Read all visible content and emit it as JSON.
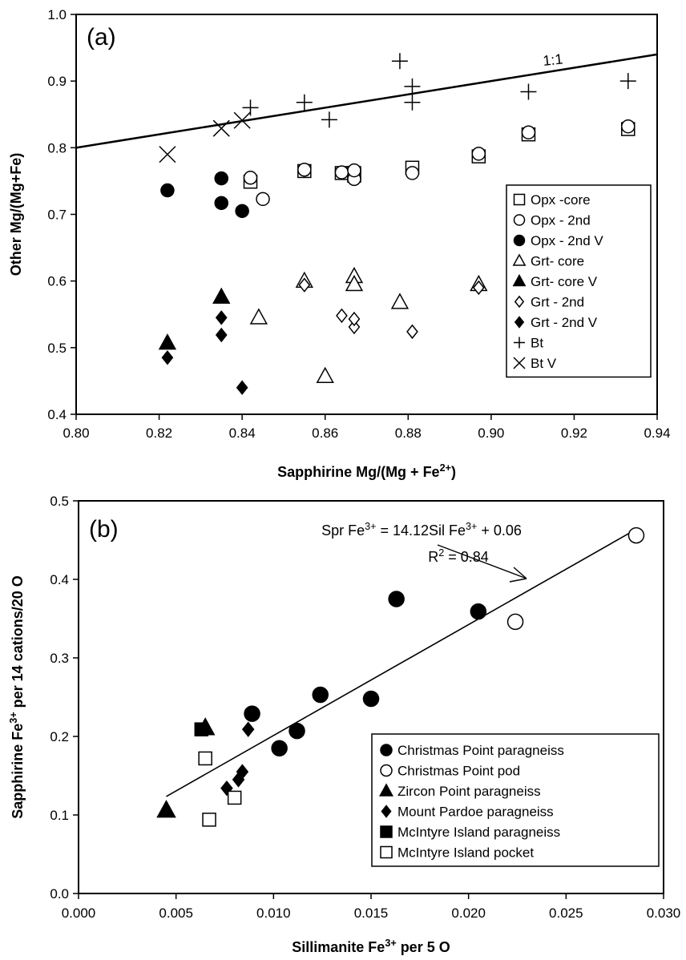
{
  "chart_data": [
    {
      "type": "scatter",
      "panel_label": "(a)",
      "xlabel": "Sapphirine Mg/(Mg + Fe",
      "xlabel_sup": "2+",
      "xlabel_end": ")",
      "ylabel": "Other Mg/(Mg+Fe)",
      "xlim": [
        0.8,
        0.94
      ],
      "ylim": [
        0.4,
        1.0
      ],
      "xticks": [
        "0.80",
        "0.82",
        "0.84",
        "0.86",
        "0.88",
        "0.90",
        "0.92",
        "0.94"
      ],
      "yticks": [
        "0.4",
        "0.5",
        "0.6",
        "0.7",
        "0.8",
        "0.9",
        "1.0"
      ],
      "reference_line": {
        "label": "1:1",
        "x": [
          0.8,
          0.94
        ],
        "y": [
          0.8,
          0.94
        ]
      },
      "legend_position": "right",
      "series": [
        {
          "name": "Opx -core",
          "marker": "open-square",
          "points": [
            [
              0.842,
              0.749
            ],
            [
              0.855,
              0.765
            ],
            [
              0.864,
              0.762
            ],
            [
              0.867,
              0.758
            ],
            [
              0.867,
              0.762
            ],
            [
              0.881,
              0.77
            ],
            [
              0.897,
              0.787
            ],
            [
              0.909,
              0.82
            ],
            [
              0.933,
              0.828
            ]
          ]
        },
        {
          "name": "Opx - 2nd",
          "marker": "open-circle",
          "points": [
            [
              0.842,
              0.755
            ],
            [
              0.845,
              0.723
            ],
            [
              0.855,
              0.767
            ],
            [
              0.864,
              0.763
            ],
            [
              0.867,
              0.753
            ],
            [
              0.867,
              0.766
            ],
            [
              0.881,
              0.762
            ],
            [
              0.897,
              0.791
            ],
            [
              0.909,
              0.823
            ],
            [
              0.933,
              0.832
            ]
          ]
        },
        {
          "name": "Opx - 2nd V",
          "marker": "filled-circle",
          "points": [
            [
              0.822,
              0.736
            ],
            [
              0.835,
              0.754
            ],
            [
              0.835,
              0.717
            ],
            [
              0.84,
              0.705
            ]
          ]
        },
        {
          "name": "Grt- core",
          "marker": "open-triangle",
          "points": [
            [
              0.844,
              0.545
            ],
            [
              0.855,
              0.6
            ],
            [
              0.86,
              0.457
            ],
            [
              0.867,
              0.607
            ],
            [
              0.867,
              0.595
            ],
            [
              0.878,
              0.568
            ],
            [
              0.897,
              0.595
            ]
          ]
        },
        {
          "name": "Grt- core V",
          "marker": "filled-triangle",
          "points": [
            [
              0.822,
              0.507
            ],
            [
              0.835,
              0.576
            ]
          ]
        },
        {
          "name": "Grt - 2nd",
          "marker": "open-diamond",
          "points": [
            [
              0.855,
              0.594
            ],
            [
              0.864,
              0.548
            ],
            [
              0.867,
              0.531
            ],
            [
              0.867,
              0.543
            ],
            [
              0.881,
              0.524
            ],
            [
              0.897,
              0.59
            ]
          ]
        },
        {
          "name": "Grt - 2nd V",
          "marker": "filled-diamond",
          "points": [
            [
              0.822,
              0.485
            ],
            [
              0.835,
              0.545
            ],
            [
              0.835,
              0.519
            ],
            [
              0.84,
              0.44
            ]
          ]
        },
        {
          "name": "Bt",
          "marker": "plus",
          "points": [
            [
              0.842,
              0.86
            ],
            [
              0.855,
              0.868
            ],
            [
              0.861,
              0.842
            ],
            [
              0.878,
              0.93
            ],
            [
              0.881,
              0.892
            ],
            [
              0.881,
              0.868
            ],
            [
              0.909,
              0.884
            ],
            [
              0.933,
              0.9
            ]
          ]
        },
        {
          "name": "Bt V",
          "marker": "cross",
          "points": [
            [
              0.822,
              0.79
            ],
            [
              0.835,
              0.829
            ],
            [
              0.84,
              0.841
            ]
          ]
        }
      ]
    },
    {
      "type": "scatter",
      "panel_label": "(b)",
      "xlabel": "Sillimanite Fe",
      "xlabel_sup": "3+",
      "xlabel_end": " per 5 O",
      "ylabel": "Sapphirine Fe",
      "ylabel_sup": "3+",
      "ylabel_end": " per 14 cations/20 O",
      "xlim": [
        0.0,
        0.03
      ],
      "ylim": [
        0.0,
        0.5
      ],
      "xticks": [
        "0.000",
        "0.005",
        "0.010",
        "0.015",
        "0.020",
        "0.025",
        "0.030"
      ],
      "yticks": [
        "0.0",
        "0.1",
        "0.2",
        "0.3",
        "0.4",
        "0.5"
      ],
      "fit_line": {
        "slope": 14.12,
        "intercept": 0.06,
        "x_range": [
          0.0045,
          0.0285
        ]
      },
      "equation_parts": [
        "Spr Fe",
        "3+",
        " = 14.12Sil Fe",
        "3+",
        " + 0.06"
      ],
      "r2_parts": [
        "R",
        "2",
        " = 0.84"
      ],
      "legend_position": "bottom-right",
      "series": [
        {
          "name": "Christmas Point paragneiss",
          "marker": "filled-circle",
          "points": [
            [
              0.0089,
              0.229
            ],
            [
              0.0103,
              0.185
            ],
            [
              0.0112,
              0.207
            ],
            [
              0.0124,
              0.253
            ],
            [
              0.015,
              0.248
            ],
            [
              0.0163,
              0.375
            ],
            [
              0.0205,
              0.359
            ]
          ]
        },
        {
          "name": "Christmas Point pod",
          "marker": "open-circle",
          "points": [
            [
              0.0224,
              0.346
            ],
            [
              0.0286,
              0.456
            ]
          ]
        },
        {
          "name": "Zircon Point paragneiss",
          "marker": "filled-triangle",
          "points": [
            [
              0.0045,
              0.106
            ],
            [
              0.0065,
              0.211
            ]
          ]
        },
        {
          "name": "Mount Pardoe paragneiss",
          "marker": "filled-diamond",
          "points": [
            [
              0.0076,
              0.134
            ],
            [
              0.0082,
              0.145
            ],
            [
              0.0084,
              0.155
            ],
            [
              0.0087,
              0.209
            ]
          ]
        },
        {
          "name": "McIntyre Island paragneiss",
          "marker": "filled-square",
          "points": [
            [
              0.0063,
              0.209
            ]
          ]
        },
        {
          "name": "McIntyre Island pocket",
          "marker": "open-square",
          "points": [
            [
              0.0065,
              0.172
            ],
            [
              0.0067,
              0.094
            ],
            [
              0.008,
              0.122
            ]
          ]
        }
      ]
    }
  ]
}
